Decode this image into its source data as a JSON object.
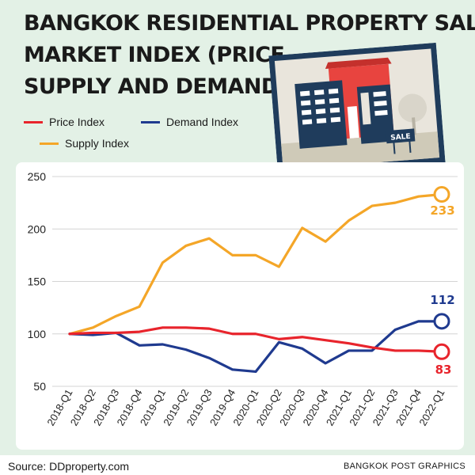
{
  "title_lines": [
    "BANGKOK RESIDENTIAL PROPERTY SALE",
    "MARKET INDEX (PRICE,",
    "SUPPLY AND DEMAND)"
  ],
  "legend": {
    "price": "Price Index",
    "demand": "Demand Index",
    "supply": "Supply Index"
  },
  "illustration": {
    "sign_text": "SALE",
    "icon": "house-for-sale-icon"
  },
  "footer": {
    "source": "Source: DDproperty.com",
    "credit": "BANGKOK POST GRAPHICS"
  },
  "colors": {
    "price": "#e8242c",
    "demand": "#1f3a8f",
    "supply": "#f4a628",
    "background": "#e3f1e6"
  },
  "chart_data": {
    "type": "line",
    "categories": [
      "2018-Q1",
      "2018-Q2",
      "2018-Q3",
      "2018-Q4",
      "2019-Q1",
      "2019-Q2",
      "2019-Q3",
      "2019-Q4",
      "2020-Q1",
      "2020-Q2",
      "2020-Q3",
      "2020-Q4",
      "2021-Q1",
      "2021-Q2",
      "2021-Q3",
      "2021-Q4",
      "2022-Q1"
    ],
    "ylim": [
      50,
      250
    ],
    "yticks": [
      50,
      100,
      150,
      200,
      250
    ],
    "grid": true,
    "series": [
      {
        "name": "Price Index",
        "key": "price",
        "values": [
          100,
          101,
          101,
          102,
          106,
          106,
          105,
          100,
          100,
          95,
          97,
          94,
          91,
          87,
          84,
          84,
          83
        ]
      },
      {
        "name": "Demand Index",
        "key": "demand",
        "values": [
          100,
          99,
          101,
          89,
          90,
          85,
          77,
          66,
          64,
          92,
          86,
          72,
          84,
          84,
          104,
          112,
          112
        ]
      },
      {
        "name": "Supply Index",
        "key": "supply",
        "values": [
          100,
          106,
          117,
          126,
          168,
          184,
          191,
          175,
          175,
          164,
          201,
          188,
          208,
          222,
          225,
          231,
          233
        ]
      }
    ],
    "end_labels": {
      "supply": "233",
      "demand": "112",
      "price": "83"
    }
  }
}
